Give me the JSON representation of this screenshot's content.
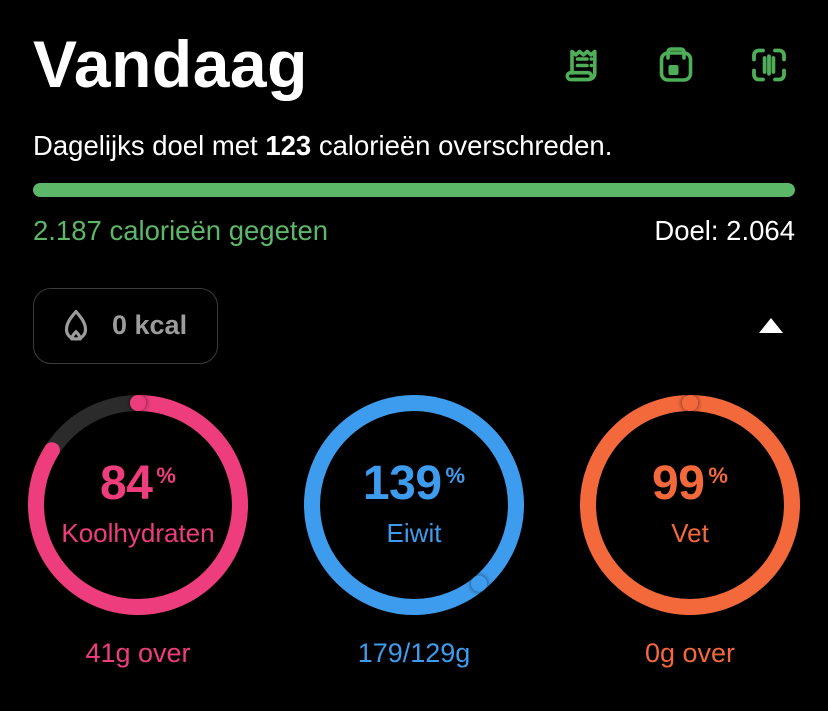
{
  "header": {
    "title": "Vandaag",
    "icons": [
      {
        "name": "receipt-icon"
      },
      {
        "name": "meal-planner-icon"
      },
      {
        "name": "barcode-scan-icon"
      }
    ]
  },
  "summary": {
    "status_prefix": "Dagelijks doel met ",
    "status_value": "123",
    "status_suffix": " calorieën overschreden.",
    "progress_percent": 100,
    "eaten_label": "2.187 calorieën gegeten",
    "goal_label": "Doel: 2.064"
  },
  "burned_chip": {
    "icon": "flame-icon",
    "label": "0 kcal"
  },
  "collapse": {
    "icon": "chevron-up-icon"
  },
  "macros": [
    {
      "id": "carbs",
      "label": "Koolhydraten",
      "percent": 84,
      "unit": "%",
      "color": "#EE3D7D",
      "footer": "41g over"
    },
    {
      "id": "protein",
      "label": "Eiwit",
      "percent": 139,
      "unit": "%",
      "color": "#3E9CEE",
      "footer": "179/129g"
    },
    {
      "id": "fat",
      "label": "Vet",
      "percent": 99,
      "unit": "%",
      "color": "#F4693B",
      "footer": "0g over"
    }
  ],
  "colors": {
    "background": "#000000",
    "green": "#5CB768",
    "icon_green": "#4FAE58",
    "pink": "#EE3D7D",
    "blue": "#3E9CEE",
    "orange": "#F4693B",
    "ring_track": "#2B2B2B",
    "muted": "#9C9C9C",
    "chip_border": "#3A3A3C",
    "white": "#FFFFFF"
  }
}
